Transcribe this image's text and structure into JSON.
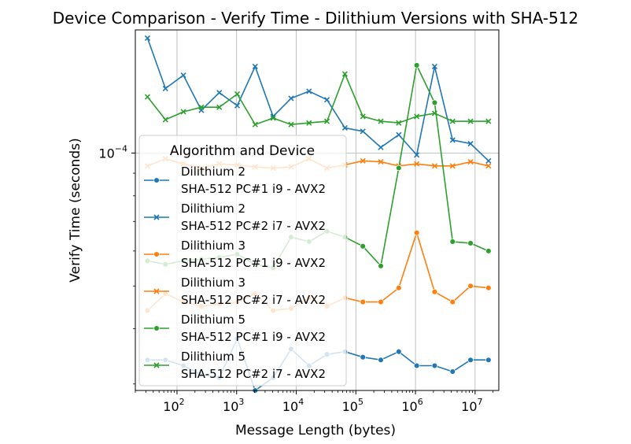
{
  "chart_data": {
    "type": "line",
    "title": "Device Comparison - Verify Time - Dilithium Versions with SHA-512",
    "xlabel": "Message Length (bytes)",
    "ylabel": "Verify Time (seconds)",
    "xscale": "log",
    "yscale": "log",
    "xlim": [
      20,
      25000000
    ],
    "ylim": [
      2.9e-05,
      0.00019
    ],
    "grid": true,
    "legend_title": "Algorithm and Device",
    "legend_placement": "center-left",
    "x_ticks": [
      {
        "value": 100,
        "label": "10",
        "exp": "2"
      },
      {
        "value": 1000,
        "label": "10",
        "exp": "3"
      },
      {
        "value": 10000,
        "label": "10",
        "exp": "4"
      },
      {
        "value": 100000,
        "label": "10",
        "exp": "5"
      },
      {
        "value": 1000000,
        "label": "10",
        "exp": "6"
      },
      {
        "value": 10000000,
        "label": "10",
        "exp": "7"
      }
    ],
    "y_ticks": [
      {
        "value": 0.0001,
        "label": "10",
        "exp": "−4"
      }
    ],
    "x": [
      32,
      64,
      128,
      256,
      512,
      1024,
      2048,
      4096,
      8192,
      16384,
      32768,
      65536,
      131072,
      262144,
      524288,
      1048576,
      2097152,
      4194304,
      8388608,
      16777216
    ],
    "series": [
      {
        "name_line1": "Dilithium 2",
        "name_line2": "SHA-512 PC#1 i9 - AVX2",
        "color": "#1f77b4",
        "marker": "circle",
        "values": [
          3.4e-05,
          3.4e-05,
          3.3e-05,
          3.15e-05,
          3.1e-05,
          3.8e-05,
          2.9e-05,
          3.1e-05,
          3.6e-05,
          3.3e-05,
          3.5e-05,
          3.55e-05,
          3.45e-05,
          3.4e-05,
          3.55e-05,
          3.3e-05,
          3.3e-05,
          3.2e-05,
          3.4e-05,
          3.4e-05
        ]
      },
      {
        "name_line1": "Dilithium 2",
        "name_line2": "SHA-512 PC#2 i7 - AVX2",
        "color": "#1f77b4",
        "marker": "x",
        "values": [
          0.000182,
          0.00014,
          0.00015,
          0.000125,
          0.000137,
          0.000128,
          0.000157,
          0.000121,
          0.000133,
          0.000138,
          0.000132,
          0.000114,
          0.000112,
          0.000103,
          0.00011,
          9.9e-05,
          0.000157,
          0.000107,
          0.000105,
          9.6e-05
        ]
      },
      {
        "name_line1": "Dilithium 3",
        "name_line2": "SHA-512 PC#1 i9 - AVX2",
        "color": "#ff7f0e",
        "marker": "circle",
        "values": [
          4.4e-05,
          4.8e-05,
          4.6e-05,
          4.5e-05,
          4.55e-05,
          4.6e-05,
          4.8e-05,
          4.4e-05,
          4.45e-05,
          4.7e-05,
          4.5e-05,
          4.7e-05,
          4.6e-05,
          4.6e-05,
          4.95e-05,
          6.6e-05,
          4.85e-05,
          4.6e-05,
          5e-05,
          4.95e-05
        ]
      },
      {
        "name_line1": "Dilithium 3",
        "name_line2": "SHA-512 PC#2 i7 - AVX2",
        "color": "#ff7f0e",
        "marker": "x",
        "values": [
          9.35e-05,
          9.7e-05,
          9.45e-05,
          9.25e-05,
          9.45e-05,
          9.4e-05,
          9.3e-05,
          9.25e-05,
          9.3e-05,
          9.7e-05,
          9.25e-05,
          9.4e-05,
          9.6e-05,
          9.55e-05,
          9.35e-05,
          9.45e-05,
          9.35e-05,
          9.35e-05,
          9.55e-05,
          9.35e-05
        ]
      },
      {
        "name_line1": "Dilithium 5",
        "name_line2": "SHA-512 PC#1 i9 - AVX2",
        "color": "#2ca02c",
        "marker": "circle",
        "values": [
          5.7e-05,
          5.6e-05,
          5.7e-05,
          5.75e-05,
          5.8e-05,
          5.9e-05,
          5.6e-05,
          5.5e-05,
          6.45e-05,
          6.3e-05,
          6.65e-05,
          6.45e-05,
          6.15e-05,
          5.55e-05,
          9.25e-05,
          0.000158,
          0.00013,
          6.3e-05,
          6.25e-05,
          6e-05
        ]
      },
      {
        "name_line1": "Dilithium 5",
        "name_line2": "SHA-512 PC#2 i7 - AVX2",
        "color": "#2ca02c",
        "marker": "x",
        "values": [
          0.000134,
          0.000119,
          0.000124,
          0.000127,
          0.000127,
          0.000136,
          0.000116,
          0.00012,
          0.000116,
          0.000117,
          0.000118,
          0.000151,
          0.000121,
          0.000118,
          0.000117,
          0.000121,
          0.000123,
          0.000118,
          0.000118,
          0.000118
        ]
      }
    ]
  }
}
